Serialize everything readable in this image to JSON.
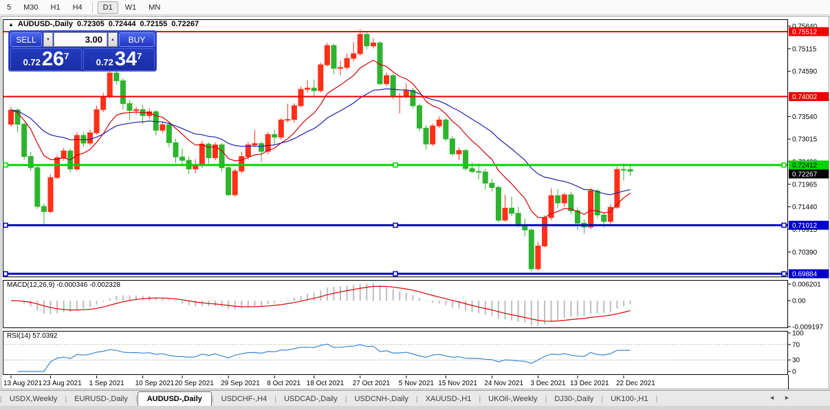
{
  "icons": {
    "collapse": "▲",
    "spinner_up": "▲",
    "spinner_down": "▼",
    "scroll_left": "◄",
    "scroll_right": "►"
  },
  "toolbar": {
    "items": [
      "5",
      "M30",
      "H1",
      "H4",
      "D1",
      "W1",
      "MN"
    ],
    "active": "D1"
  },
  "title": {
    "symbol": "AUDUSD-,Daily",
    "open": "0.72305",
    "high": "0.72444",
    "low": "0.72155",
    "close": "0.72267"
  },
  "trade_panel": {
    "sell_label": "SELL",
    "buy_label": "BUY",
    "volume": "3.00",
    "bid": {
      "prefix": "0.72",
      "big": "26",
      "sup": "7"
    },
    "ask": {
      "prefix": "0.72",
      "big": "34",
      "sup": "7"
    }
  },
  "price_axis": {
    "ticks": [
      {
        "label": "0.75640",
        "price": 0.7564
      },
      {
        "label": "0.75115",
        "price": 0.75115
      },
      {
        "label": "0.74590",
        "price": 0.7459
      },
      {
        "label": "0.73540",
        "price": 0.7354
      },
      {
        "label": "0.73015",
        "price": 0.73015
      },
      {
        "label": "0.72490",
        "price": 0.7249
      },
      {
        "label": "0.71965",
        "price": 0.71965
      },
      {
        "label": "0.71440",
        "price": 0.7144
      },
      {
        "label": "0.70915",
        "price": 0.70915
      },
      {
        "label": "0.70390",
        "price": 0.7039
      }
    ],
    "tags": [
      {
        "label": "0.75512",
        "price": 0.75512,
        "bg": "#ee0000",
        "fg": "#ffffff"
      },
      {
        "label": "0.74002",
        "price": 0.74002,
        "bg": "#ee0000",
        "fg": "#ffffff"
      },
      {
        "label": "0.72412",
        "price": 0.72412,
        "bg": "#00d400",
        "fg": "#000000"
      },
      {
        "label": "0.72267",
        "price": 0.72267,
        "bg": "#000000",
        "fg": "#ffffff"
      },
      {
        "label": "0.71012",
        "price": 0.71012,
        "bg": "#0000c8",
        "fg": "#ffffff"
      },
      {
        "label": "0.69884",
        "price": 0.69884,
        "bg": "#0000c8",
        "fg": "#ffffff"
      }
    ]
  },
  "chart_data": {
    "type": "candlestick",
    "symbol": "AUDUSD",
    "timeframe": "Daily",
    "bull_color": "#ff3018",
    "bear_color": "#2eb32e",
    "price_range": [
      0.6981,
      0.7577
    ],
    "x_labels": [
      {
        "text": "13 Aug 2021",
        "index": 0
      },
      {
        "text": "23 Aug 2021",
        "index": 6
      },
      {
        "text": "1 Sep 2021",
        "index": 13
      },
      {
        "text": "10 Sep 2021",
        "index": 20
      },
      {
        "text": "20 Sep 2021",
        "index": 26
      },
      {
        "text": "29 Sep 2021",
        "index": 33
      },
      {
        "text": "8 Oct 2021",
        "index": 40
      },
      {
        "text": "18 Oct 2021",
        "index": 46
      },
      {
        "text": "27 Oct 2021",
        "index": 53
      },
      {
        "text": "5 Nov 2021",
        "index": 60
      },
      {
        "text": "15 Nov 2021",
        "index": 66
      },
      {
        "text": "24 Nov 2021",
        "index": 73
      },
      {
        "text": "3 Dec 2021",
        "index": 80
      },
      {
        "text": "13 Dec 2021",
        "index": 86
      },
      {
        "text": "22 Dec 2021",
        "index": 93
      }
    ],
    "candles": [
      [
        0.7336,
        0.7377,
        0.733,
        0.7369
      ],
      [
        0.7369,
        0.7373,
        0.7317,
        0.7336
      ],
      [
        0.7336,
        0.734,
        0.7253,
        0.7261
      ],
      [
        0.7261,
        0.7272,
        0.7227,
        0.7235
      ],
      [
        0.7235,
        0.7241,
        0.7139,
        0.7145
      ],
      [
        0.7145,
        0.7152,
        0.7102,
        0.7133
      ],
      [
        0.7133,
        0.7219,
        0.7129,
        0.7212
      ],
      [
        0.7212,
        0.7264,
        0.7209,
        0.7258
      ],
      [
        0.7258,
        0.7281,
        0.7251,
        0.7274
      ],
      [
        0.7274,
        0.7279,
        0.7224,
        0.7232
      ],
      [
        0.7232,
        0.7317,
        0.7228,
        0.731
      ],
      [
        0.731,
        0.7318,
        0.7283,
        0.7292
      ],
      [
        0.7292,
        0.7323,
        0.7287,
        0.7316
      ],
      [
        0.7316,
        0.7379,
        0.7312,
        0.737
      ],
      [
        0.737,
        0.7409,
        0.7364,
        0.74
      ],
      [
        0.74,
        0.7478,
        0.7396,
        0.7455
      ],
      [
        0.7455,
        0.7462,
        0.7428,
        0.7437
      ],
      [
        0.7437,
        0.7443,
        0.737,
        0.7384
      ],
      [
        0.7384,
        0.7392,
        0.7345,
        0.7368
      ],
      [
        0.7368,
        0.7377,
        0.7358,
        0.737
      ],
      [
        0.737,
        0.738,
        0.7337,
        0.7356
      ],
      [
        0.7356,
        0.7373,
        0.7348,
        0.7365
      ],
      [
        0.7365,
        0.7369,
        0.731,
        0.7322
      ],
      [
        0.7322,
        0.7343,
        0.7316,
        0.7335
      ],
      [
        0.7335,
        0.734,
        0.7282,
        0.7293
      ],
      [
        0.7293,
        0.7302,
        0.7246,
        0.726
      ],
      [
        0.726,
        0.7279,
        0.7243,
        0.7252
      ],
      [
        0.7252,
        0.7261,
        0.722,
        0.7232
      ],
      [
        0.7232,
        0.7255,
        0.7222,
        0.7241
      ],
      [
        0.7241,
        0.7297,
        0.7235,
        0.729
      ],
      [
        0.729,
        0.7294,
        0.7245,
        0.7258
      ],
      [
        0.7258,
        0.7294,
        0.7252,
        0.7288
      ],
      [
        0.7288,
        0.7292,
        0.7226,
        0.7235
      ],
      [
        0.7235,
        0.7242,
        0.717,
        0.7172
      ],
      [
        0.7172,
        0.7233,
        0.7168,
        0.7227
      ],
      [
        0.7227,
        0.7272,
        0.7222,
        0.7261
      ],
      [
        0.7261,
        0.7295,
        0.7254,
        0.7288
      ],
      [
        0.7288,
        0.7323,
        0.7282,
        0.7291
      ],
      [
        0.7291,
        0.7296,
        0.7248,
        0.7273
      ],
      [
        0.7273,
        0.7318,
        0.7266,
        0.7312
      ],
      [
        0.7312,
        0.7324,
        0.7288,
        0.7306
      ],
      [
        0.7306,
        0.735,
        0.73,
        0.7346
      ],
      [
        0.7346,
        0.7384,
        0.734,
        0.7347
      ],
      [
        0.7347,
        0.7385,
        0.7339,
        0.7379
      ],
      [
        0.7379,
        0.7424,
        0.7375,
        0.7417
      ],
      [
        0.7417,
        0.7439,
        0.741,
        0.742
      ],
      [
        0.742,
        0.744,
        0.7401,
        0.7414
      ],
      [
        0.7414,
        0.7479,
        0.741,
        0.7474
      ],
      [
        0.7474,
        0.7525,
        0.747,
        0.7519
      ],
      [
        0.7519,
        0.7523,
        0.7452,
        0.7466
      ],
      [
        0.7466,
        0.7484,
        0.745,
        0.7468
      ],
      [
        0.7468,
        0.75,
        0.7462,
        0.7489
      ],
      [
        0.7489,
        0.7527,
        0.7482,
        0.75
      ],
      [
        0.75,
        0.7556,
        0.7495,
        0.7545
      ],
      [
        0.7545,
        0.7553,
        0.751,
        0.7518
      ],
      [
        0.7518,
        0.7536,
        0.7512,
        0.7525
      ],
      [
        0.7525,
        0.7529,
        0.7427,
        0.743
      ],
      [
        0.743,
        0.7456,
        0.7424,
        0.7449
      ],
      [
        0.7449,
        0.7453,
        0.7394,
        0.74
      ],
      [
        0.74,
        0.7409,
        0.7361,
        0.7401
      ],
      [
        0.7401,
        0.7432,
        0.7396,
        0.7415
      ],
      [
        0.7415,
        0.742,
        0.7373,
        0.7379
      ],
      [
        0.7379,
        0.7384,
        0.7319,
        0.7327
      ],
      [
        0.7327,
        0.7334,
        0.7277,
        0.729
      ],
      [
        0.729,
        0.7337,
        0.7285,
        0.7332
      ],
      [
        0.7332,
        0.7354,
        0.7327,
        0.7346
      ],
      [
        0.7346,
        0.735,
        0.7296,
        0.7302
      ],
      [
        0.7302,
        0.7309,
        0.7263,
        0.7267
      ],
      [
        0.7267,
        0.7282,
        0.7253,
        0.7275
      ],
      [
        0.7275,
        0.7279,
        0.7227,
        0.7233
      ],
      [
        0.7233,
        0.7247,
        0.7222,
        0.7226
      ],
      [
        0.7226,
        0.7245,
        0.7208,
        0.7225
      ],
      [
        0.7225,
        0.7232,
        0.7184,
        0.7199
      ],
      [
        0.7199,
        0.721,
        0.718,
        0.7189
      ],
      [
        0.7189,
        0.7194,
        0.7108,
        0.7113
      ],
      [
        0.7113,
        0.7172,
        0.711,
        0.7141
      ],
      [
        0.7141,
        0.7168,
        0.7122,
        0.7129
      ],
      [
        0.7129,
        0.7144,
        0.7096,
        0.7103
      ],
      [
        0.7103,
        0.7117,
        0.7075,
        0.709
      ],
      [
        0.709,
        0.7094,
        0.6994,
        0.7
      ],
      [
        0.7,
        0.7063,
        0.6996,
        0.7053
      ],
      [
        0.7053,
        0.7124,
        0.705,
        0.7119
      ],
      [
        0.7119,
        0.7187,
        0.7113,
        0.717
      ],
      [
        0.717,
        0.7185,
        0.7141,
        0.7153
      ],
      [
        0.7153,
        0.7176,
        0.7144,
        0.7172
      ],
      [
        0.7172,
        0.7179,
        0.7126,
        0.7135
      ],
      [
        0.7135,
        0.7143,
        0.709,
        0.7106
      ],
      [
        0.7106,
        0.7115,
        0.7082,
        0.7097
      ],
      [
        0.7097,
        0.7188,
        0.7092,
        0.7181
      ],
      [
        0.7181,
        0.7186,
        0.7118,
        0.7125
      ],
      [
        0.7125,
        0.7131,
        0.7095,
        0.711
      ],
      [
        0.711,
        0.715,
        0.7104,
        0.7143
      ],
      [
        0.7143,
        0.7237,
        0.7139,
        0.7231
      ],
      [
        0.7231,
        0.7245,
        0.7205,
        0.723
      ],
      [
        0.72305,
        0.72444,
        0.72155,
        0.72267
      ]
    ],
    "ma_fast": {
      "type": "ema",
      "period": 10,
      "color": "#cc0000"
    },
    "ma_slow": {
      "type": "ema",
      "period": 26,
      "color": "#2020aa"
    },
    "hlines": [
      {
        "price": 0.75512,
        "color": "#ee0000",
        "width": 2,
        "handles": false
      },
      {
        "price": 0.74002,
        "color": "#ee0000",
        "width": 2,
        "handles": false
      },
      {
        "price": 0.72412,
        "color": "#00d400",
        "width": 3,
        "handles": true
      },
      {
        "price": 0.71012,
        "color": "#0000c8",
        "width": 3,
        "handles": true
      },
      {
        "price": 0.69884,
        "color": "#0000c8",
        "width": 3,
        "handles": true
      }
    ],
    "macd": {
      "label": "MACD(12,26,9) -0.000346 -0.002328",
      "params": [
        12,
        26,
        9
      ],
      "main_value": -0.000346,
      "signal_value": -0.002328,
      "axis": [
        "0.006201",
        "0.00",
        "-0.009197"
      ],
      "hist_color": "#bdbdbd",
      "signal_color": "#dd0000"
    },
    "rsi": {
      "label": "RSI(14) 57.0392",
      "period": 14,
      "value": 57.0392,
      "axis": [
        100,
        70,
        30,
        0
      ],
      "levels": [
        70,
        30
      ],
      "color": "#3a86d2"
    }
  },
  "tabs": {
    "items": [
      "USDX,Weekly",
      "EURUSD-,Daily",
      "AUDUSD-,Daily",
      "USDCHF-,H4",
      "USDCAD-,Daily",
      "USDCNH-,Daily",
      "XAUUSD-,H1",
      "UKOil-,Weekly",
      "DJ30-,Daily",
      "UK100-,H1"
    ],
    "active_index": 2
  }
}
